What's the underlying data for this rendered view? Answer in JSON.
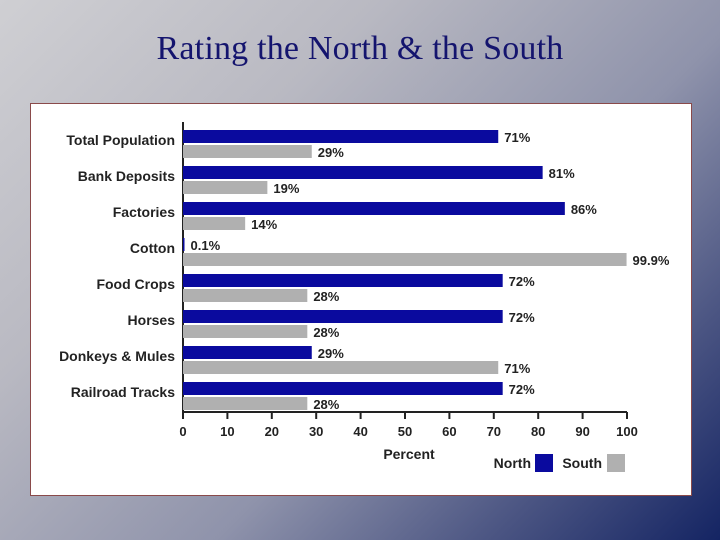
{
  "slide": {
    "title": "Rating the North & the South"
  },
  "colors": {
    "north": "#0a0a9e",
    "south": "#b0b0b0"
  },
  "chart_data": {
    "type": "bar",
    "orientation": "horizontal",
    "categories": [
      "Total Population",
      "Bank Deposits",
      "Factories",
      "Cotton",
      "Food Crops",
      "Horses",
      "Donkeys & Mules",
      "Railroad Tracks"
    ],
    "series": [
      {
        "name": "North",
        "values": [
          71,
          81,
          86,
          0.1,
          72,
          72,
          29,
          72
        ],
        "labels": [
          "71%",
          "81%",
          "86%",
          "0.1%",
          "72%",
          "72%",
          "29%",
          "72%"
        ]
      },
      {
        "name": "South",
        "values": [
          29,
          19,
          14,
          99.9,
          28,
          28,
          71,
          28
        ],
        "labels": [
          "29%",
          "19%",
          "14%",
          "99.9%",
          "28%",
          "28%",
          "71%",
          "28%"
        ]
      }
    ],
    "xlabel": "Percent",
    "xlim": [
      0,
      100
    ],
    "xticks": [
      0,
      10,
      20,
      30,
      40,
      50,
      60,
      70,
      80,
      90,
      100
    ],
    "legend_position": "bottom-right",
    "grid": false
  }
}
